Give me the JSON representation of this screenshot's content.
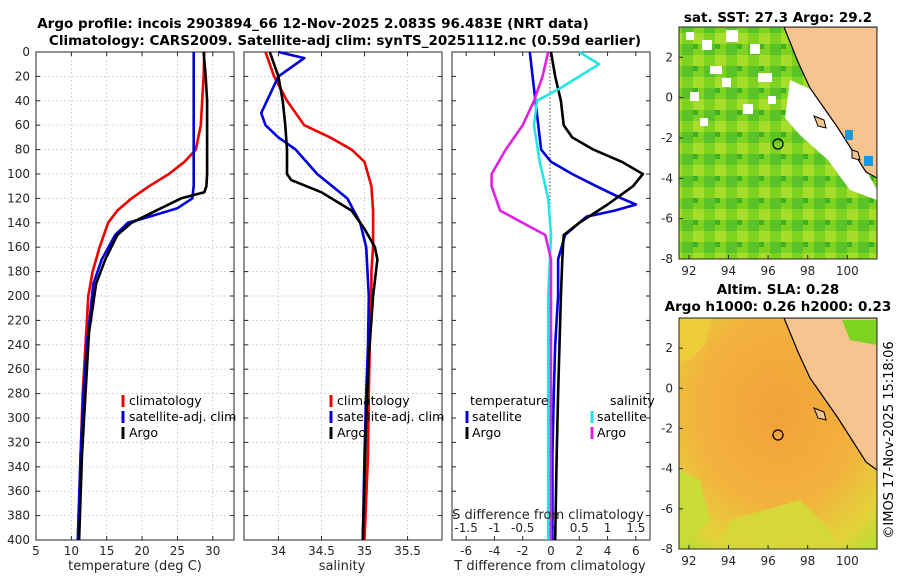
{
  "titles": {
    "main_line1": "Argo profile: incois 2903894_66 12-Nov-2025 2.083S 96.483E (NRT data)",
    "main_line2": "Climatology: CARS2009. Satellite-adj clim: synTS_20251112.nc (0.59d earlier)",
    "sst": "sat. SST: 27.3 Argo: 29.2",
    "sla_line1": "Altim. SLA: 0.28",
    "sla_line2": "Argo h1000: 0.26 h2000: 0.23"
  },
  "colors": {
    "climatology": "#ee0000",
    "satellite": "#0000dd",
    "argo": "#000000",
    "temp_diff_sat": "#22e5e5",
    "sal_diff_sat": "#e022e0",
    "land": "#f7c38e",
    "sst_green": "#7ed321",
    "sla_orange": "#f0a43a"
  },
  "watermark": "©IMOS 17-Nov-2025 15:18:06",
  "depth_axis": {
    "ylim": [
      0,
      400
    ],
    "ticks": [
      0,
      20,
      40,
      60,
      80,
      100,
      120,
      140,
      160,
      180,
      200,
      220,
      240,
      260,
      280,
      300,
      320,
      340,
      360,
      380,
      400
    ]
  },
  "chart_data": [
    {
      "id": "temperature",
      "type": "line",
      "xlabel": "temperature (deg C)",
      "ylabel": "",
      "xlim": [
        5,
        33
      ],
      "ylim": [
        400,
        0
      ],
      "xticks": [
        5,
        10,
        15,
        20,
        25,
        30
      ],
      "grid": true,
      "legend": [
        "climatology",
        "satellite-adj. clim",
        "Argo"
      ],
      "series": [
        {
          "name": "climatology",
          "color": "#ee0000",
          "x": [
            28.8,
            28.7,
            28.5,
            28.3,
            27.6,
            26.0,
            23.8,
            21.0,
            18.5,
            16.5,
            15.2,
            14.0,
            13.0,
            12.4,
            12.0,
            11.6,
            11.3,
            11.0
          ],
          "y": [
            0,
            20,
            40,
            60,
            80,
            90,
            100,
            110,
            120,
            130,
            140,
            160,
            180,
            200,
            240,
            280,
            330,
            400
          ]
        },
        {
          "name": "satellite-adj. clim",
          "color": "#0000dd",
          "x": [
            27.3,
            27.3,
            27.3,
            27.3,
            27.3,
            27.3,
            27.3,
            27.1,
            25.0,
            21.0,
            18.0,
            16.2,
            14.3,
            13.1,
            12.2,
            11.7,
            11.3,
            10.9
          ],
          "y": [
            0,
            20,
            40,
            60,
            80,
            100,
            110,
            120,
            128,
            135,
            140,
            150,
            170,
            190,
            240,
            280,
            330,
            400
          ]
        },
        {
          "name": "Argo",
          "color": "#000000",
          "x": [
            28.7,
            29.0,
            29.2,
            29.2,
            29.2,
            29.2,
            29.1,
            28.8,
            25.5,
            22.0,
            18.5,
            16.5,
            14.8,
            13.5,
            12.5,
            12.0,
            11.5,
            11.1
          ],
          "y": [
            0,
            20,
            40,
            60,
            80,
            100,
            110,
            115,
            120,
            130,
            140,
            150,
            170,
            190,
            230,
            280,
            330,
            400
          ]
        }
      ]
    },
    {
      "id": "salinity",
      "type": "line",
      "xlabel": "salinity",
      "ylabel": "",
      "xlim": [
        33.6,
        35.9
      ],
      "ylim": [
        400,
        0
      ],
      "xticks": [
        34,
        34.5,
        35,
        35.5
      ],
      "grid": true,
      "legend": [
        "climatology",
        "satellite-adj. clim",
        "Argo"
      ],
      "series": [
        {
          "name": "climatology",
          "color": "#ee0000",
          "x": [
            33.85,
            33.95,
            34.1,
            34.3,
            34.6,
            34.85,
            35.0,
            35.08,
            35.1,
            35.1,
            35.08,
            35.08,
            35.06,
            35.05,
            35.04,
            35.0
          ],
          "y": [
            0,
            20,
            40,
            60,
            70,
            80,
            90,
            110,
            130,
            160,
            180,
            200,
            240,
            280,
            330,
            400
          ]
        },
        {
          "name": "satellite-adj. clim",
          "color": "#0000dd",
          "x": [
            34.0,
            34.3,
            34.0,
            33.8,
            33.85,
            34.0,
            34.2,
            34.45,
            34.8,
            34.95,
            35.02,
            35.05,
            35.04,
            35.02,
            35.0,
            34.98
          ],
          "y": [
            0,
            5,
            20,
            50,
            60,
            70,
            80,
            100,
            120,
            140,
            160,
            200,
            240,
            280,
            330,
            400
          ]
        },
        {
          "name": "Argo",
          "color": "#000000",
          "x": [
            33.9,
            33.95,
            34.0,
            34.05,
            34.08,
            34.1,
            34.1,
            34.15,
            34.5,
            34.85,
            35.0,
            35.12,
            35.15,
            35.1,
            35.05,
            35.02,
            35.0,
            34.98
          ],
          "y": [
            0,
            10,
            20,
            40,
            60,
            80,
            100,
            105,
            115,
            130,
            145,
            160,
            170,
            200,
            250,
            300,
            350,
            400
          ]
        }
      ]
    },
    {
      "id": "differences",
      "type": "line",
      "xlabel": "T difference from climatology",
      "top_axis_label": "S difference from climatology",
      "ylabel": "",
      "xlim": [
        -7,
        7
      ],
      "ylim": [
        400,
        0
      ],
      "xticks": [
        -6,
        -4,
        -2,
        0,
        2,
        4,
        6
      ],
      "top_xlim": [
        -1.75,
        1.75
      ],
      "top_xticks": [
        -1.5,
        -1,
        -0.5,
        0,
        0.5,
        1,
        1.5
      ],
      "grid": false,
      "legend_titles": [
        "temperature",
        "salinity"
      ],
      "legend": {
        "temperature": [
          "satellite",
          "Argo"
        ],
        "salinity": [
          "satellite",
          "Argo"
        ]
      },
      "series": [
        {
          "name": "temperature satellite",
          "group": "temperature",
          "color": "#0000dd",
          "x": [
            -1.5,
            -1.3,
            -1.1,
            -0.9,
            -0.7,
            0,
            1.5,
            3.2,
            5.0,
            6.0,
            4.5,
            2.5,
            1.0,
            0.5,
            0.5,
            0.3,
            0.2,
            0.1,
            0.1
          ],
          "y": [
            0,
            20,
            40,
            60,
            80,
            90,
            100,
            110,
            120,
            125,
            130,
            135,
            150,
            170,
            200,
            240,
            280,
            330,
            400
          ]
        },
        {
          "name": "temperature Argo",
          "group": "temperature",
          "color": "#000000",
          "x": [
            0,
            0.3,
            0.7,
            0.9,
            1.5,
            3.0,
            5.0,
            6.5,
            5.8,
            4.0,
            2.0,
            0.9,
            0.8,
            0.7,
            0.6,
            0.5,
            0.4,
            0.3
          ],
          "y": [
            0,
            20,
            40,
            60,
            70,
            80,
            90,
            100,
            110,
            125,
            140,
            150,
            170,
            200,
            240,
            280,
            330,
            400
          ]
        },
        {
          "name": "salinity satellite",
          "group": "salinity",
          "color": "#22e5e5",
          "x": [
            0.5,
            0.85,
            0.5,
            0.15,
            -0.25,
            -0.3,
            -0.2,
            -0.05,
            0.0,
            -0.05,
            -0.05,
            -0.05
          ],
          "y": [
            0,
            10,
            20,
            30,
            40,
            60,
            90,
            120,
            150,
            200,
            300,
            400
          ]
        },
        {
          "name": "salinity Argo",
          "group": "salinity",
          "color": "#e022e0",
          "x": [
            -0.05,
            -0.15,
            -0.3,
            -0.5,
            -0.8,
            -1.05,
            -1.05,
            -0.9,
            -0.5,
            -0.1,
            0.0,
            0.0,
            0.0
          ],
          "y": [
            0,
            20,
            40,
            60,
            80,
            100,
            110,
            130,
            140,
            150,
            170,
            250,
            400
          ]
        }
      ]
    },
    {
      "id": "sst_map",
      "type": "heatmap",
      "title": "sat. SST: 27.3 Argo: 29.2",
      "xlim": [
        91.5,
        101.5
      ],
      "ylim": [
        -8,
        3.5
      ],
      "xticks": [
        92,
        94,
        96,
        98,
        100
      ],
      "yticks": [
        -8,
        -6,
        -4,
        -2,
        0,
        2
      ],
      "profile_location": {
        "lon": 96.483,
        "lat": -2.083
      }
    },
    {
      "id": "sla_map",
      "type": "heatmap",
      "title": "Altim. SLA: 0.28 / Argo h1000: 0.26 h2000: 0.23",
      "xlim": [
        91.5,
        101.5
      ],
      "ylim": [
        -8,
        3.5
      ],
      "xticks": [
        92,
        94,
        96,
        98,
        100
      ],
      "yticks": [
        -8,
        -6,
        -4,
        -2,
        0,
        2
      ],
      "profile_location": {
        "lon": 96.483,
        "lat": -2.083
      }
    }
  ]
}
